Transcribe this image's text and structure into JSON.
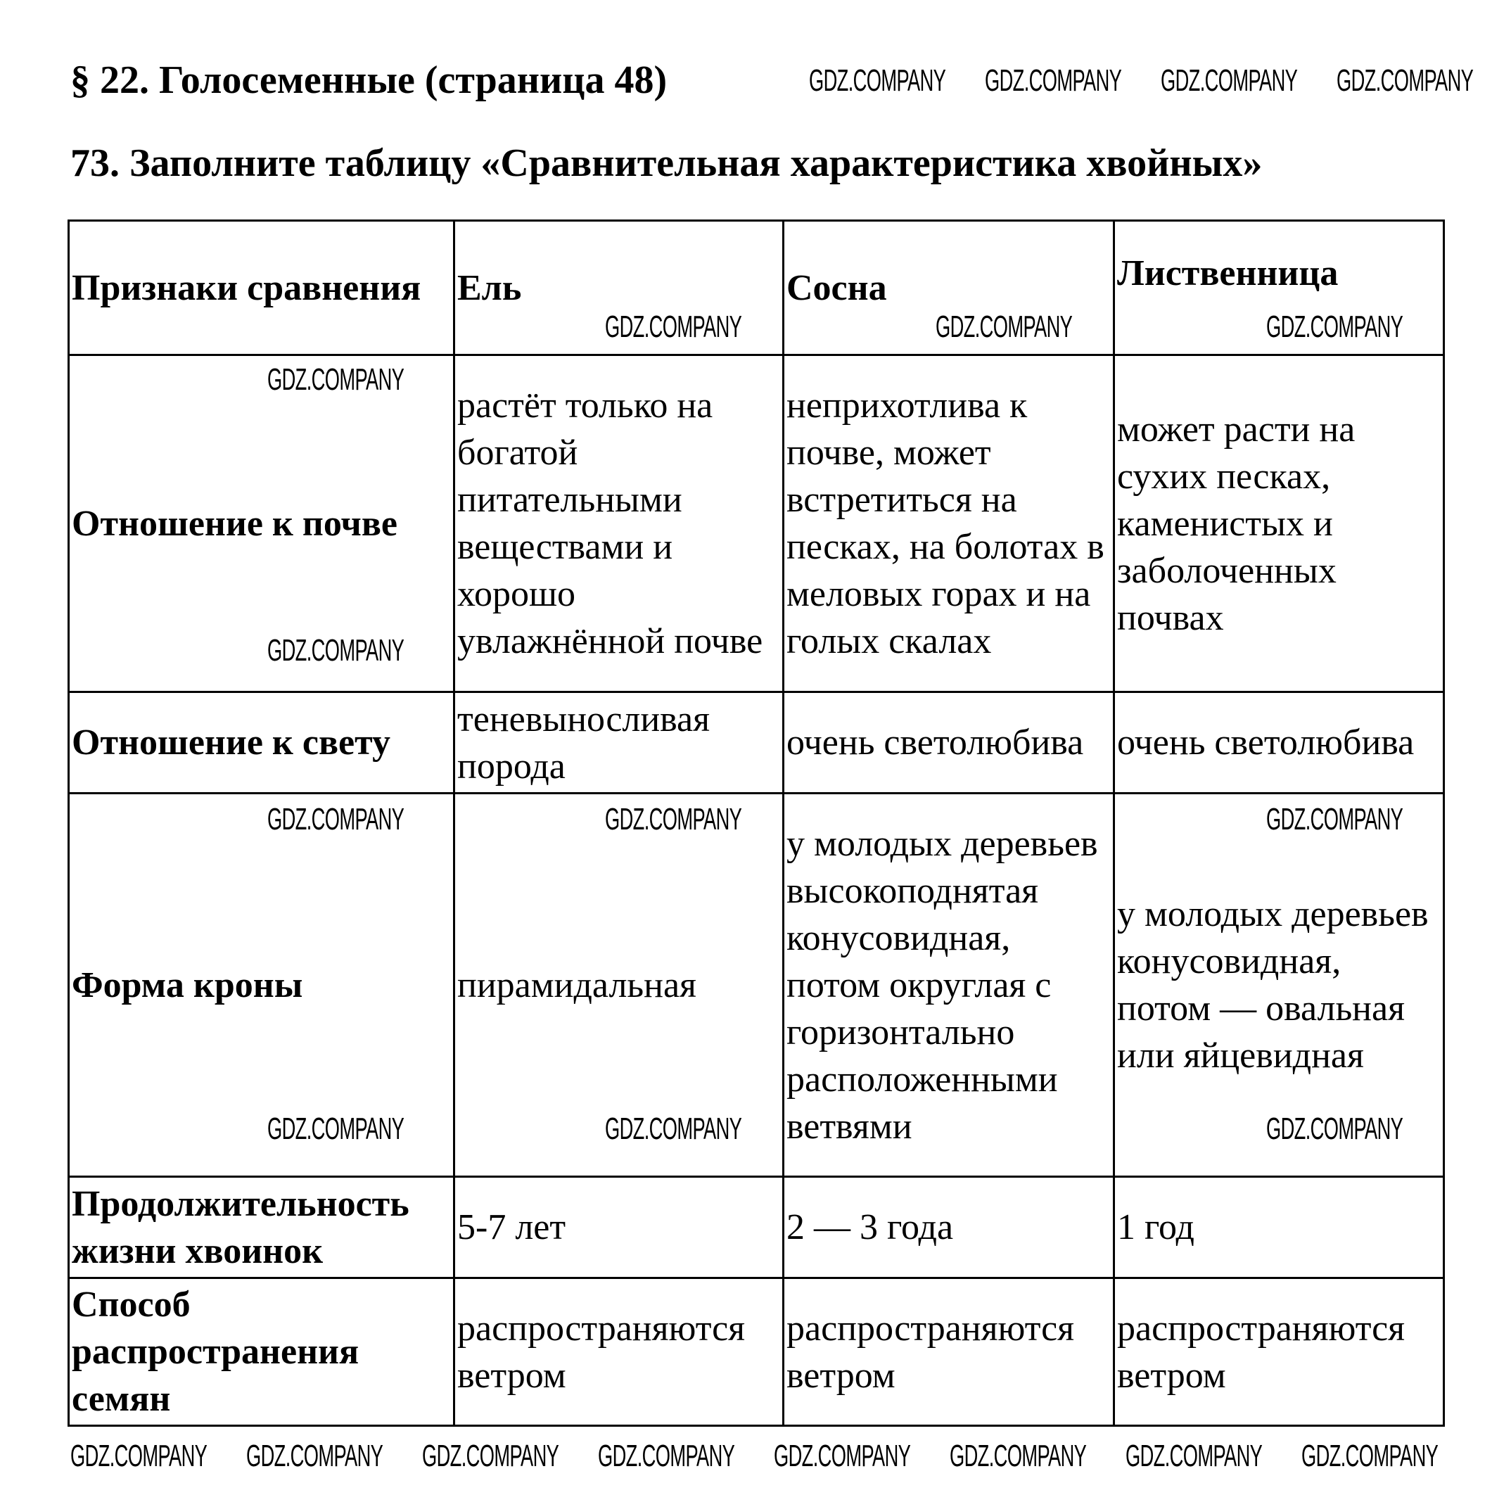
{
  "heading": "§ 22. Голосеменные (страница 48)",
  "task": "73. Заполните таблицу «Сравнительная характеристика хвойных»",
  "watermark": "GDZ.COMPANY",
  "table": {
    "headers": [
      "Признаки сравнения",
      "Ель",
      "Сосна",
      "Лиственница"
    ],
    "rows": [
      {
        "label": "Отношение к почве",
        "cells": [
          "растёт только на богатой питательными веществами и хорошо увлажнённой почве",
          "неприхотлива к почве, может встретиться на песках, на болотах в меловых горах и на голых скалах",
          "может расти на сухих песках, каменистых и заболоченных почвах"
        ]
      },
      {
        "label": "Отношение к свету",
        "cells": [
          "теневыносливая порода",
          "очень светолюбива",
          "очень светолюбива"
        ]
      },
      {
        "label": "Форма кроны",
        "cells": [
          "пирамидальная",
          "у молодых деревьев высокоподнятая конусовидная, потом округлая с горизонтально расположенными ветвями",
          "у молодых деревьев конусовидная, потом — овальная или яйцевидная"
        ]
      },
      {
        "label": "Продолжительность жизни хвоинок",
        "cells": [
          "5-7 лет",
          "2 — 3 года",
          "1 год"
        ]
      },
      {
        "label": "Способ распространения семян",
        "cells": [
          "распространяются ветром",
          "распространяются ветром",
          "распространяются ветром"
        ]
      }
    ]
  }
}
